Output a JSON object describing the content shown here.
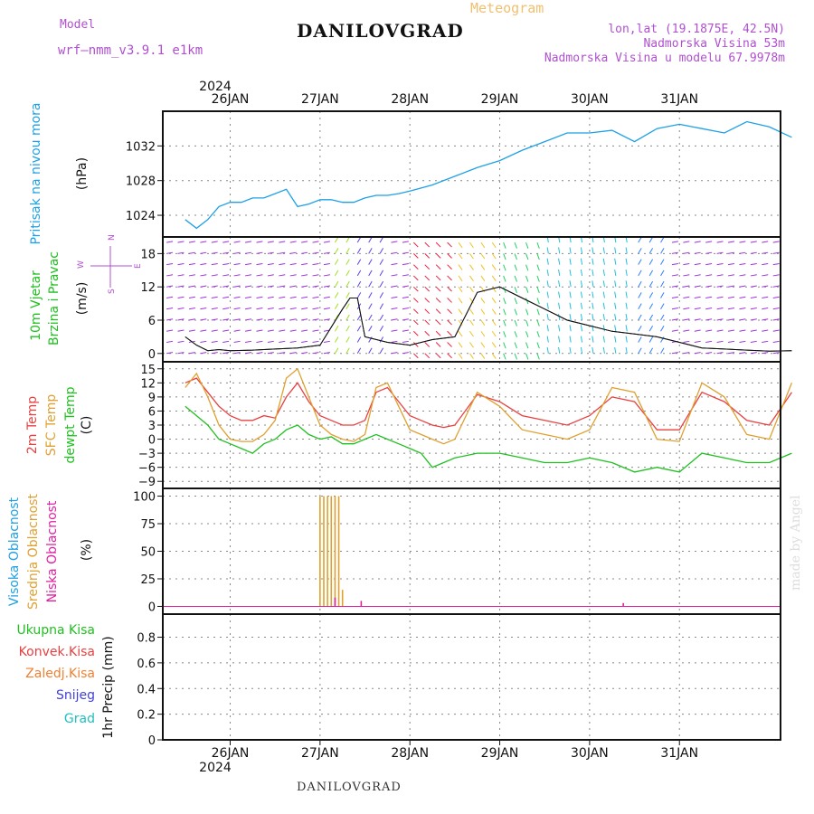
{
  "header": {
    "model_label": "Model",
    "model_name": "wrf–nmm_v3.9.1  e1km",
    "station_title": "DANILOVGRAD",
    "chart_kind": "Meteogram",
    "coords": "lon,lat (19.1875E, 42.5N)",
    "elevation": "Nadmorska Visina 53m",
    "model_elevation": "Nadmorska Visina u modelu 67.9978m",
    "footer_title": "DANILOVGRAD",
    "watermark": "made by Angel"
  },
  "colors": {
    "pressure": "#1ea0e6",
    "temp": "#e84040",
    "sfc_temp": "#e0a030",
    "dewpt": "#20c020",
    "high_cloud": "#20a0e0",
    "mid_cloud": "#e0a030",
    "low_cloud": "#e020a0",
    "precip_total": "#20c020",
    "precip_conv": "#e84040",
    "precip_frozen": "#f08030",
    "snow": "#4040e0",
    "hail": "#20c0c0",
    "wind_label": "#20c020",
    "wind_compass": "#b050d0"
  },
  "chart_data": {
    "type": "line",
    "x_axis": {
      "year": "2024",
      "dates": [
        "26JAN",
        "27JAN",
        "28JAN",
        "29JAN",
        "30JAN",
        "31JAN"
      ],
      "start_hour_offset": 0
    },
    "panels": [
      {
        "id": "pressure",
        "label_lines": [
          "Pritisak na nivou mora"
        ],
        "unit": "(hPa)",
        "ticks": [
          1024,
          1028,
          1032
        ],
        "ylim": [
          1021.5,
          1036
        ],
        "series": [
          {
            "x": [
              0,
              3,
              6,
              9,
              12,
              15,
              18,
              21,
              24,
              27,
              30,
              33,
              36,
              39,
              42,
              45,
              48,
              51,
              54,
              57,
              60,
              66,
              72,
              78,
              84,
              90,
              96,
              102,
              108,
              114,
              120,
              126,
              132,
              138,
              144,
              150,
              156,
              162
            ],
            "y": [
              1023.5,
              1022.5,
              1023.5,
              1025,
              1025.5,
              1025.5,
              1026,
              1026,
              1026.5,
              1027,
              1025,
              1025.3,
              1025.8,
              1025.8,
              1025.5,
              1025.5,
              1026,
              1026.3,
              1026.3,
              1026.5,
              1026.8,
              1027.5,
              1028.5,
              1029.5,
              1030.3,
              1031.5,
              1032.5,
              1033.5,
              1033.5,
              1033.8,
              1032.5,
              1034.0,
              1034.5,
              1034.0,
              1033.5,
              1034.8,
              1034.2,
              1033.0
            ]
          }
        ]
      },
      {
        "id": "wind",
        "label_lines": [
          "10m Vjetar",
          "Brzina i Pravac"
        ],
        "unit": "(m/s)",
        "compass": {
          "n": "N",
          "s": "S",
          "e": "E",
          "w": "W"
        },
        "ticks": [
          0,
          6,
          12,
          18
        ],
        "ylim": [
          -1.5,
          21
        ],
        "series": [
          {
            "name": "speed",
            "x": [
              0,
              3,
              6,
              9,
              12,
              18,
              24,
              30,
              36,
              42,
              44,
              46,
              48,
              54,
              60,
              66,
              72,
              78,
              84,
              90,
              96,
              102,
              108,
              114,
              120,
              126,
              132,
              138,
              144,
              150,
              156,
              162
            ],
            "y": [
              3,
              1.5,
              0.5,
              0.7,
              0.5,
              0.6,
              0.8,
              1,
              1.5,
              8,
              10,
              10,
              3,
              2,
              1.5,
              2.5,
              3,
              11,
              12,
              10,
              8,
              6,
              5,
              4,
              3.5,
              3,
              2,
              1,
              0.8,
              0.6,
              0.4,
              0.5
            ]
          }
        ]
      },
      {
        "id": "temp",
        "label_lines": [
          "2m Temp",
          "SFC Temp",
          "dewpt Temp"
        ],
        "unit": "(C)",
        "ticks": [
          15,
          12,
          9,
          6,
          3,
          0,
          -3,
          -6,
          -9
        ],
        "ylim": [
          -10.5,
          16.5
        ],
        "series": [
          {
            "name": "2m Temp",
            "x": [
              0,
              3,
              6,
              9,
              12,
              15,
              18,
              21,
              24,
              27,
              30,
              33,
              36,
              39,
              42,
              45,
              48,
              51,
              54,
              57,
              60,
              63,
              66,
              69,
              72,
              78,
              84,
              90,
              96,
              102,
              108,
              114,
              120,
              126,
              132,
              138,
              144,
              150,
              156,
              162
            ],
            "y": [
              12,
              13,
              10,
              7,
              5,
              4,
              4,
              5,
              4.5,
              9,
              12,
              8,
              5,
              4,
              3,
              3,
              4,
              10,
              11,
              8,
              5,
              4,
              3,
              2.5,
              3,
              9.5,
              8,
              5,
              4,
              3,
              5,
              9,
              8,
              2,
              2,
              10,
              8,
              4,
              3,
              10
            ]
          },
          {
            "name": "SFC Temp",
            "x": [
              0,
              3,
              6,
              9,
              12,
              15,
              18,
              21,
              24,
              27,
              30,
              33,
              36,
              39,
              42,
              45,
              48,
              51,
              54,
              57,
              60,
              63,
              66,
              69,
              72,
              78,
              84,
              90,
              96,
              102,
              108,
              114,
              120,
              126,
              132,
              138,
              144,
              150,
              156,
              162
            ],
            "y": [
              11,
              14,
              9,
              3,
              0,
              -0.5,
              -0.5,
              1,
              4,
              13,
              15,
              9,
              3,
              1,
              0,
              -0.5,
              1,
              11,
              12,
              7,
              2,
              1,
              0,
              -1,
              0,
              10,
              7,
              2,
              1,
              0,
              2,
              11,
              10,
              0,
              -0.5,
              12,
              9,
              1,
              0,
              12
            ]
          },
          {
            "name": "dewpt Temp",
            "x": [
              0,
              3,
              6,
              9,
              12,
              15,
              18,
              21,
              24,
              27,
              30,
              33,
              36,
              39,
              42,
              45,
              48,
              51,
              54,
              57,
              60,
              63,
              66,
              69,
              72,
              78,
              84,
              90,
              96,
              102,
              108,
              114,
              120,
              126,
              132,
              138,
              144,
              150,
              156,
              162
            ],
            "y": [
              7,
              5,
              3,
              0,
              -1,
              -2,
              -3,
              -1,
              0,
              2,
              3,
              1,
              0,
              0.5,
              -1,
              -1,
              0,
              1,
              0,
              -1,
              -2,
              -3,
              -6,
              -5,
              -4,
              -3,
              -3,
              -4,
              -5,
              -5,
              -4,
              -5,
              -7,
              -6,
              -7,
              -3,
              -4,
              -5,
              -5,
              -3
            ]
          }
        ]
      },
      {
        "id": "cloud",
        "label_lines": [
          "Visoka Oblacnost",
          "Srednja Oblacnost",
          "Niska Oblacnost"
        ],
        "unit": "(%)",
        "ticks": [
          0,
          25,
          50,
          75,
          100
        ],
        "ylim": [
          -7,
          107
        ],
        "bars": [
          {
            "name": "Srednja Oblacnost",
            "x": [
              36,
              37,
              38,
              39,
              40,
              41,
              42
            ],
            "y": [
              100,
              100,
              100,
              100,
              100,
              100,
              15
            ]
          },
          {
            "name": "Niska Oblacnost",
            "x": [
              40,
              47,
              117
            ],
            "y": [
              8,
              5,
              3
            ]
          }
        ]
      },
      {
        "id": "precip",
        "label_lines": [
          "1hr Precip (mm)"
        ],
        "legend": [
          "Ukupna Kisa",
          "Konvek.Kisa",
          "Zaledj.Kisa",
          "Snijeg",
          "Grad"
        ],
        "ticks": [
          0,
          0.2,
          0.4,
          0.6,
          0.8
        ],
        "ylim": [
          0,
          0.98
        ],
        "series": []
      }
    ]
  }
}
